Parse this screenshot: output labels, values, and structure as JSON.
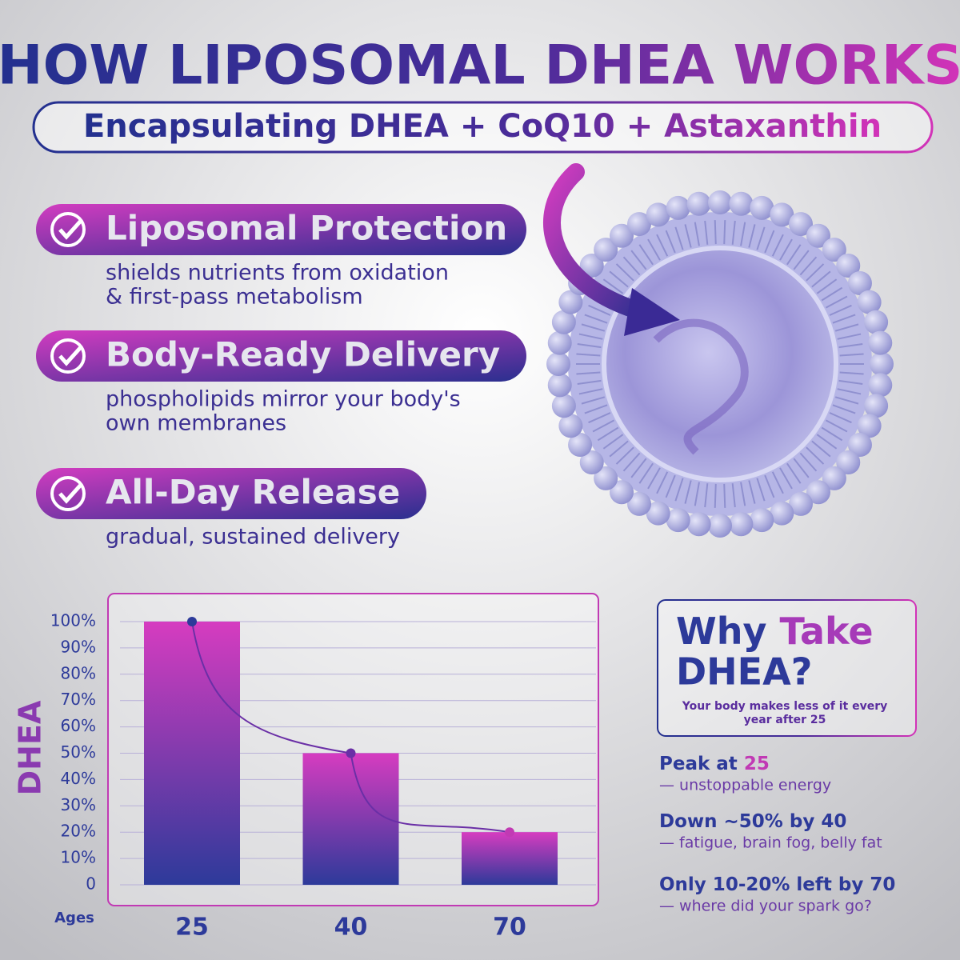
{
  "header": {
    "title": "HOW LIPOSOMAL DHEA WORKS",
    "subtitle": "Encapsulating DHEA + CoQ10 + Astaxanthin"
  },
  "features": [
    {
      "title": "Liposomal Protection",
      "lines": [
        "shields nutrients from oxidation",
        "& first-pass metabolism"
      ]
    },
    {
      "title": "Body-Ready Delivery",
      "lines": [
        "phospholipids mirror your body's",
        "own membranes"
      ]
    },
    {
      "title": "All-Day Release",
      "lines": [
        "gradual, sustained delivery"
      ]
    }
  ],
  "chart_data": {
    "type": "bar",
    "y_label": "DHEA",
    "x_label": "Ages",
    "categories": [
      "25",
      "40",
      "70"
    ],
    "values": [
      100,
      50,
      20
    ],
    "ylim": [
      0,
      100
    ],
    "yticks": [
      0,
      {
        "value": 10,
        "label": "10%"
      },
      {
        "value": 20,
        "label": "20%"
      },
      {
        "value": 30,
        "label": "30%"
      },
      {
        "value": 40,
        "label": "40%"
      },
      {
        "value": 50,
        "label": "50%"
      },
      {
        "value": 60,
        "label": "60%"
      },
      {
        "value": 70,
        "label": "70%"
      },
      {
        "value": 80,
        "label": "80%"
      },
      {
        "value": 90,
        "label": "90%"
      },
      {
        "value": 100,
        "label": "100%"
      }
    ],
    "grid": true,
    "color": "#d63cc0",
    "curve": true
  },
  "sidebar": {
    "title": [
      "Why",
      "Take",
      "DHEA?"
    ],
    "subtitle": [
      "Your body makes less of it every",
      "year after 25"
    ],
    "stats": [
      {
        "heading": "Peak at",
        "highlight": "25",
        "detail": "— unstoppable energy"
      },
      {
        "heading": "Down ~50% by 40",
        "highlight": "",
        "detail": "— fatigue, brain fog, belly fat"
      },
      {
        "heading": "Only 10-20% left by 70",
        "highlight": "",
        "detail": "— where did your spark go?"
      }
    ]
  }
}
